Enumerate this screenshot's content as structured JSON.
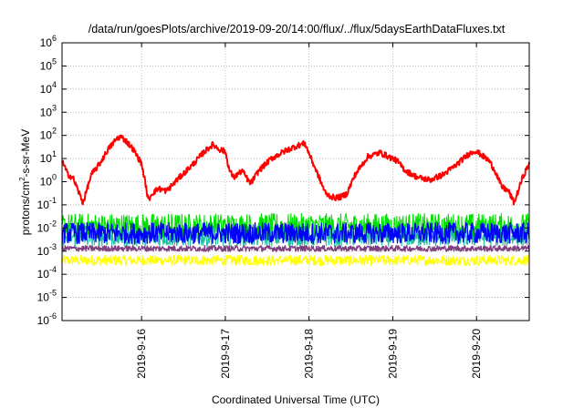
{
  "chart_data": {
    "type": "line",
    "title": "/data/run/goesPlots/archive/2019-09-20/14:00/flux/../flux/5daysEarthDataFluxes.txt",
    "xlabel": "Coordinated Universal Time (UTC)",
    "ylabel": "protons/cm²-s-sr-MeV",
    "ylabel_parts": {
      "pre": "protons/cm",
      "sup": "2",
      "post": "-s-sr-MeV"
    },
    "y_scale": "log",
    "ylim": [
      1e-06,
      1000000.0
    ],
    "xlim": [
      15.05,
      20.63
    ],
    "grid": true,
    "y_ticks": [
      {
        "value": 1e-06,
        "base": "10",
        "exp": "-6"
      },
      {
        "value": 1e-05,
        "base": "10",
        "exp": "-5"
      },
      {
        "value": 0.0001,
        "base": "10",
        "exp": "-4"
      },
      {
        "value": 0.001,
        "base": "10",
        "exp": "-3"
      },
      {
        "value": 0.01,
        "base": "10",
        "exp": "-2"
      },
      {
        "value": 0.1,
        "base": "10",
        "exp": "-1"
      },
      {
        "value": 1,
        "base": "10",
        "exp": "0"
      },
      {
        "value": 10,
        "base": "10",
        "exp": "1"
      },
      {
        "value": 100,
        "base": "10",
        "exp": "2"
      },
      {
        "value": 1000,
        "base": "10",
        "exp": "3"
      },
      {
        "value": 10000,
        "base": "10",
        "exp": "4"
      },
      {
        "value": 100000,
        "base": "10",
        "exp": "5"
      },
      {
        "value": 1000000,
        "base": "10",
        "exp": "6"
      }
    ],
    "x_ticks": [
      {
        "value": 16,
        "label": "2019-9-16"
      },
      {
        "value": 17,
        "label": "2019-9-17"
      },
      {
        "value": 18,
        "label": "2019-9-18"
      },
      {
        "value": 19,
        "label": "2019-9-19"
      },
      {
        "value": 20,
        "label": "2019-9-20"
      }
    ],
    "series": [
      {
        "color": "#ffff00",
        "width": 1.1,
        "x": [
          15.05,
          16.0,
          17.0,
          18.0,
          19.0,
          20.0,
          20.63
        ],
        "y": [
          0.0004,
          0.0004,
          0.0004,
          0.0004,
          0.0004,
          0.0004,
          0.0004
        ],
        "noise_logspread": 0.45
      },
      {
        "color": "#00e000",
        "width": 1.1,
        "x": [
          15.05,
          16.0,
          17.0,
          18.0,
          19.0,
          20.0,
          20.63
        ],
        "y": [
          0.012,
          0.012,
          0.012,
          0.012,
          0.012,
          0.012,
          0.012
        ],
        "noise_logspread": 1.1
      },
      {
        "color": "#20c0a0",
        "width": 1.1,
        "x": [
          15.05,
          16.0,
          17.0,
          18.0,
          19.0,
          20.0,
          20.63
        ],
        "y": [
          0.004,
          0.004,
          0.004,
          0.004,
          0.004,
          0.004,
          0.004
        ],
        "noise_logspread": 0.8
      },
      {
        "color": "#0000ff",
        "width": 1.3,
        "x": [
          15.05,
          16.0,
          17.0,
          18.0,
          19.0,
          20.0,
          20.63
        ],
        "y": [
          0.006,
          0.006,
          0.006,
          0.006,
          0.006,
          0.006,
          0.006
        ],
        "noise_logspread": 0.9
      },
      {
        "color": "#804080",
        "width": 1.4,
        "x": [
          15.05,
          16.0,
          17.0,
          18.0,
          19.0,
          20.0,
          20.63
        ],
        "y": [
          0.0013,
          0.0013,
          0.0013,
          0.0013,
          0.0013,
          0.0013,
          0.0013
        ],
        "noise_logspread": 0.25
      },
      {
        "color": "#ff0000",
        "width": 2.0,
        "x": [
          15.05,
          15.12,
          15.18,
          15.25,
          15.3,
          15.35,
          15.4,
          15.5,
          15.6,
          15.7,
          15.75,
          15.82,
          15.9,
          16.0,
          16.05,
          16.08,
          16.12,
          16.2,
          16.3,
          16.45,
          16.6,
          16.75,
          16.85,
          16.93,
          17.0,
          17.05,
          17.1,
          17.2,
          17.3,
          17.4,
          17.55,
          17.7,
          17.85,
          17.95,
          18.05,
          18.12,
          18.2,
          18.3,
          18.38,
          18.45,
          18.55,
          18.7,
          18.85,
          18.95,
          19.05,
          19.15,
          19.3,
          19.45,
          19.6,
          19.75,
          19.9,
          19.98,
          20.05,
          20.15,
          20.22,
          20.3,
          20.38,
          20.45,
          20.55,
          20.63
        ],
        "y": [
          8,
          2,
          1.5,
          0.35,
          0.12,
          0.5,
          2,
          6,
          25,
          70,
          90,
          55,
          25,
          6,
          0.7,
          0.15,
          0.3,
          0.5,
          0.4,
          1.5,
          5,
          20,
          40,
          25,
          20,
          3,
          1.5,
          3,
          0.8,
          3,
          10,
          20,
          35,
          45,
          6,
          1.5,
          0.3,
          0.2,
          0.22,
          0.3,
          2,
          12,
          18,
          12,
          8,
          3,
          1.5,
          1.2,
          2,
          5,
          15,
          22,
          15,
          8,
          3,
          0.6,
          0.4,
          0.12,
          1.5,
          6
        ],
        "noise_logspread": 0.25
      }
    ]
  }
}
